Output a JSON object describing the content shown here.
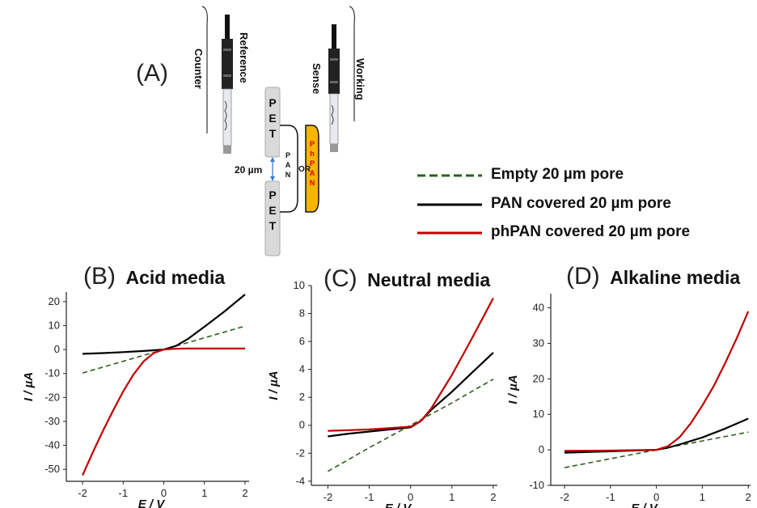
{
  "schematic": {
    "panel_label": "(A)",
    "electrodes": [
      "Counter",
      "Reference",
      "Sense",
      "Working"
    ],
    "pet_label": [
      "P",
      "E",
      "T"
    ],
    "pan_label": [
      "P",
      "A",
      "N"
    ],
    "phpan_label": [
      "P",
      "h",
      "P",
      "A",
      "N"
    ],
    "or_label": "OR",
    "pore_label": "20 µm",
    "colors": {
      "pet": "#d9d9d9",
      "phpan_fill": "#f7b500",
      "phpan_text": "#e00000",
      "arrow": "#3a7bd5"
    }
  },
  "legend": {
    "items": [
      {
        "label": "Empty 20 µm pore",
        "color": "#2d5e1e",
        "style": "dashed"
      },
      {
        "label": "PAN covered 20 µm pore",
        "color": "#000000",
        "style": "solid"
      },
      {
        "label": "phPAN covered 20 µm pore",
        "color": "#c00000",
        "style": "solid"
      }
    ]
  },
  "chart_data": [
    {
      "type": "line",
      "panel": "(B)",
      "title": "Acid media",
      "xlabel": "E / V",
      "ylabel": "I / µA",
      "xlim": [
        -2.4,
        2.1
      ],
      "ylim": [
        -55,
        24
      ],
      "xticks": [
        -2,
        -1,
        0,
        1,
        2
      ],
      "yticks": [
        -50,
        -40,
        -30,
        -20,
        -10,
        0,
        10,
        20
      ],
      "series": [
        {
          "name": "Empty 20 µm pore",
          "color": "#2d5e1e",
          "dash": true,
          "x": [
            -2,
            2
          ],
          "y": [
            -9.8,
            9.8
          ]
        },
        {
          "name": "PAN covered 20 µm pore",
          "color": "#000000",
          "dash": false,
          "x": [
            -2,
            -1.5,
            -1,
            -0.5,
            0,
            0.3,
            0.6,
            1,
            1.5,
            2
          ],
          "y": [
            -1.8,
            -1.5,
            -1.1,
            -0.6,
            0,
            1.5,
            4.5,
            9.5,
            16,
            23
          ]
        },
        {
          "name": "phPAN covered 20 µm pore",
          "color": "#c00000",
          "dash": false,
          "x": [
            -2,
            -1.75,
            -1.5,
            -1.25,
            -1,
            -0.75,
            -0.5,
            -0.25,
            0,
            0.25,
            0.5,
            1,
            1.5,
            2
          ],
          "y": [
            -52.5,
            -43,
            -34,
            -25.5,
            -17.5,
            -10.5,
            -5,
            -1.5,
            0,
            0.3,
            0.4,
            0.4,
            0.4,
            0.4
          ]
        }
      ]
    },
    {
      "type": "line",
      "panel": "(C)",
      "title": "Neutral media",
      "xlabel": "E / V",
      "ylabel": "I / µA",
      "xlim": [
        -2.4,
        2.1
      ],
      "ylim": [
        -4.3,
        10
      ],
      "xticks": [
        -2,
        -1,
        0,
        1,
        2
      ],
      "yticks": [
        -4,
        -2,
        0,
        2,
        4,
        6,
        8,
        10
      ],
      "series": [
        {
          "name": "Empty 20 µm pore",
          "color": "#2d5e1e",
          "dash": true,
          "x": [
            -2,
            -1,
            0,
            1,
            2
          ],
          "y": [
            -3.3,
            -1.6,
            0,
            1.6,
            3.3
          ]
        },
        {
          "name": "PAN covered 20 µm pore",
          "color": "#000000",
          "dash": false,
          "x": [
            -2,
            -1.5,
            -1,
            -0.5,
            0,
            0.25,
            0.5,
            1,
            1.5,
            2
          ],
          "y": [
            -0.8,
            -0.6,
            -0.45,
            -0.3,
            -0.15,
            0.3,
            1.1,
            2.4,
            3.8,
            5.2
          ]
        },
        {
          "name": "phPAN covered 20 µm pore",
          "color": "#c00000",
          "dash": false,
          "x": [
            -2,
            -1.5,
            -1,
            -0.5,
            0,
            0.25,
            0.5,
            1,
            1.5,
            2
          ],
          "y": [
            -0.4,
            -0.35,
            -0.3,
            -0.2,
            -0.1,
            0.3,
            1.2,
            3.6,
            6.3,
            9.1
          ]
        }
      ]
    },
    {
      "type": "line",
      "panel": "(D)",
      "title": "Alkaline media",
      "xlabel": "E / V",
      "ylabel": "I / µA",
      "xlim": [
        -2.3,
        2.05
      ],
      "ylim": [
        -10,
        44
      ],
      "xticks": [
        -2,
        -1,
        0,
        1,
        2
      ],
      "yticks": [
        -10,
        0,
        10,
        20,
        30,
        40
      ],
      "series": [
        {
          "name": "Empty 20 µm pore",
          "color": "#2d5e1e",
          "dash": true,
          "x": [
            -2,
            -1,
            0,
            1,
            2
          ],
          "y": [
            -5,
            -2.5,
            0,
            2.5,
            5
          ]
        },
        {
          "name": "PAN covered 20 µm pore",
          "color": "#000000",
          "dash": false,
          "x": [
            -2,
            -1,
            0,
            0.25,
            0.5,
            1,
            1.5,
            2
          ],
          "y": [
            -0.8,
            -0.4,
            0,
            0.6,
            1.5,
            3.5,
            6,
            8.8
          ]
        },
        {
          "name": "phPAN covered 20 µm pore",
          "color": "#c00000",
          "dash": false,
          "x": [
            -2,
            -1,
            0,
            0.25,
            0.5,
            0.75,
            1,
            1.25,
            1.5,
            1.75,
            2
          ],
          "y": [
            -0.3,
            -0.2,
            0,
            1,
            3.5,
            7.5,
            12.5,
            18,
            24.5,
            31.5,
            39
          ]
        }
      ]
    }
  ]
}
